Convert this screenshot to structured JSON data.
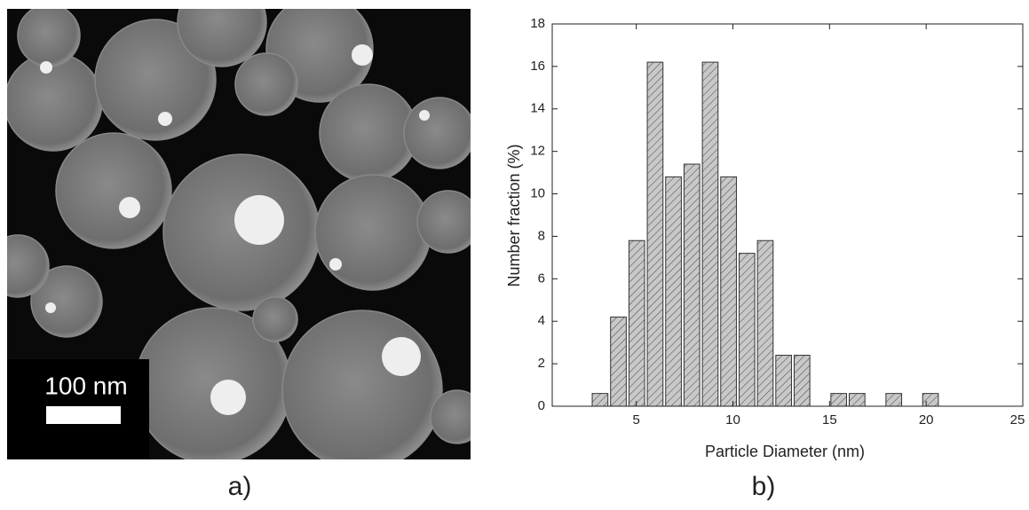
{
  "image": {
    "scale_bar": "100 nm",
    "panel_label": "a)"
  },
  "chart_data": {
    "type": "histogram",
    "panel_label": "b)",
    "x_label": "Particle Diameter (nm)",
    "y_label": "Number fraction (%)",
    "bins": [
      2.65,
      3.6,
      4.55,
      5.5,
      6.45,
      7.4,
      8.35,
      9.3,
      10.25,
      11.2,
      12.15,
      13.1,
      14.05,
      15.0,
      15.95,
      16.9,
      17.85,
      18.8,
      19.75,
      20.7
    ],
    "values": [
      0.6,
      4.2,
      7.8,
      16.2,
      10.8,
      11.4,
      16.2,
      10.8,
      7.2,
      7.8,
      2.4,
      2.4,
      0,
      0.6,
      0.6,
      0,
      0.6,
      0,
      0.6
    ],
    "color": "#c8c8c8",
    "xlim": [
      0.65,
      25
    ],
    "xticks": [
      5,
      10,
      15,
      20,
      25
    ],
    "ylim": [
      0,
      18
    ],
    "yticks": [
      0,
      2,
      4,
      6,
      8,
      10,
      12,
      14,
      16,
      18
    ]
  }
}
